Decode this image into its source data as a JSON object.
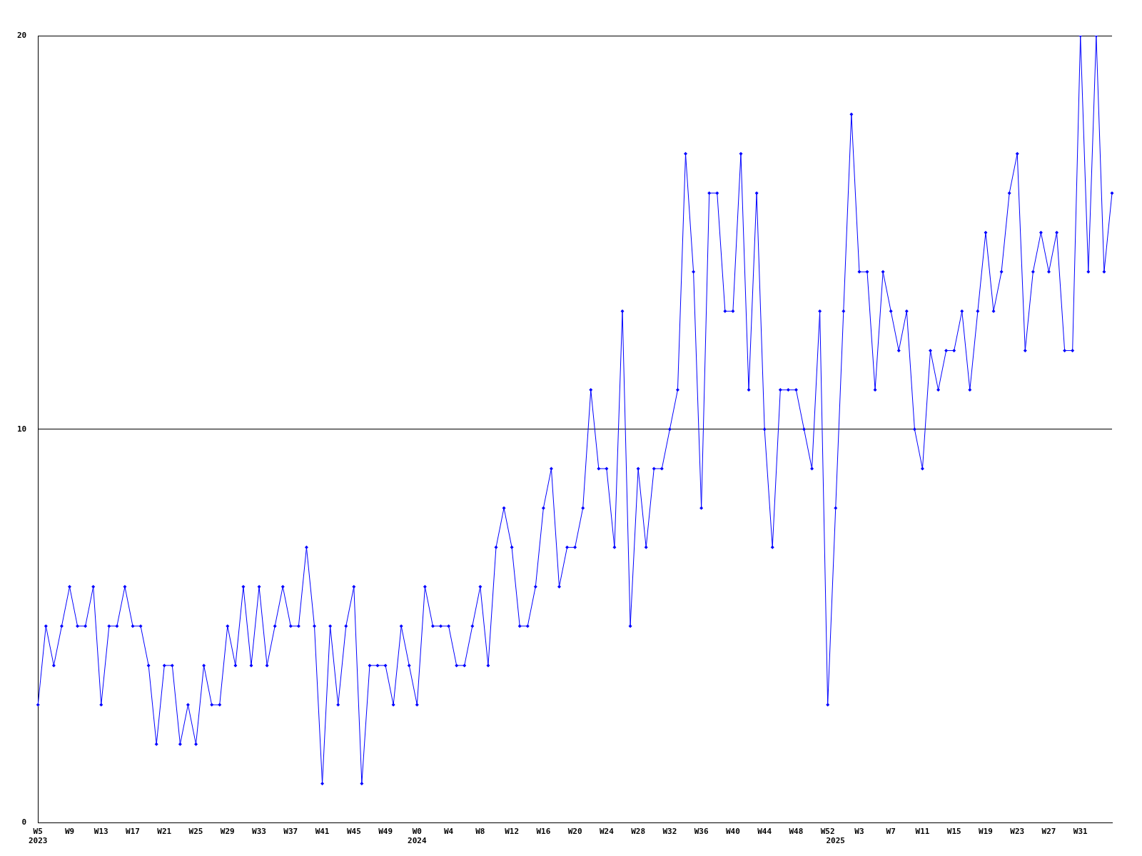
{
  "chart_data": {
    "type": "line",
    "categories": [
      "W5\n2023",
      null,
      null,
      null,
      "W9",
      null,
      null,
      null,
      "W13",
      null,
      null,
      null,
      "W17",
      null,
      null,
      null,
      "W21",
      null,
      null,
      null,
      "W25",
      null,
      null,
      null,
      "W29",
      null,
      null,
      null,
      "W33",
      null,
      null,
      null,
      "W37",
      null,
      null,
      null,
      "W41",
      null,
      null,
      null,
      "W45",
      null,
      null,
      null,
      "W49",
      null,
      null,
      null,
      "W0\n2024",
      null,
      null,
      null,
      "W4",
      null,
      null,
      null,
      "W8",
      null,
      null,
      null,
      "W12",
      null,
      null,
      null,
      "W16",
      null,
      null,
      null,
      "W20",
      null,
      null,
      null,
      "W24",
      null,
      null,
      null,
      "W28",
      null,
      null,
      null,
      "W32",
      null,
      null,
      null,
      "W36",
      null,
      null,
      null,
      "W40",
      null,
      null,
      null,
      "W44",
      null,
      null,
      null,
      "W48",
      null,
      null,
      null,
      "W52",
      "\n2025",
      null,
      null,
      "W3",
      null,
      null,
      null,
      "W7",
      null,
      null,
      null,
      "W11",
      null,
      null,
      null,
      "W15",
      null,
      null,
      null,
      "W19",
      null,
      null,
      null,
      "W23",
      null,
      null,
      null,
      "W27",
      null,
      null,
      null,
      "W31",
      null,
      null,
      null,
      null
    ],
    "series": [
      {
        "color": "#0000ff",
        "values": [
          3,
          5,
          4,
          5,
          6,
          5,
          5,
          6,
          3,
          5,
          5,
          6,
          5,
          5,
          4,
          2,
          4,
          4,
          2,
          3,
          2,
          4,
          3,
          3,
          5,
          4,
          6,
          4,
          6,
          4,
          5,
          6,
          5,
          5,
          7,
          5,
          1,
          5,
          3,
          5,
          6,
          1,
          4,
          4,
          4,
          3,
          5,
          4,
          3,
          6,
          5,
          5,
          5,
          4,
          4,
          5,
          6,
          4,
          7,
          8,
          7,
          5,
          5,
          6,
          8,
          9,
          6,
          7,
          7,
          8,
          11,
          9,
          9,
          7,
          13,
          5,
          9,
          7,
          9,
          9,
          10,
          11,
          17,
          14,
          8,
          16,
          16,
          13,
          13,
          17,
          11,
          16,
          10,
          7,
          11,
          11,
          11,
          10,
          9,
          13,
          3,
          8,
          13,
          18,
          14,
          14,
          11,
          14,
          13,
          12,
          13,
          10,
          9,
          12,
          11,
          12,
          12,
          13,
          11,
          13,
          15,
          13,
          14,
          16,
          17,
          12,
          14,
          15,
          14,
          15,
          12,
          12,
          20,
          14,
          20,
          14,
          16
        ]
      }
    ],
    "ylim": [
      0,
      20
    ],
    "yticks": [
      0,
      10,
      20
    ],
    "grid": "y",
    "legend": false,
    "marker": "diamond",
    "line_style": "solid"
  }
}
